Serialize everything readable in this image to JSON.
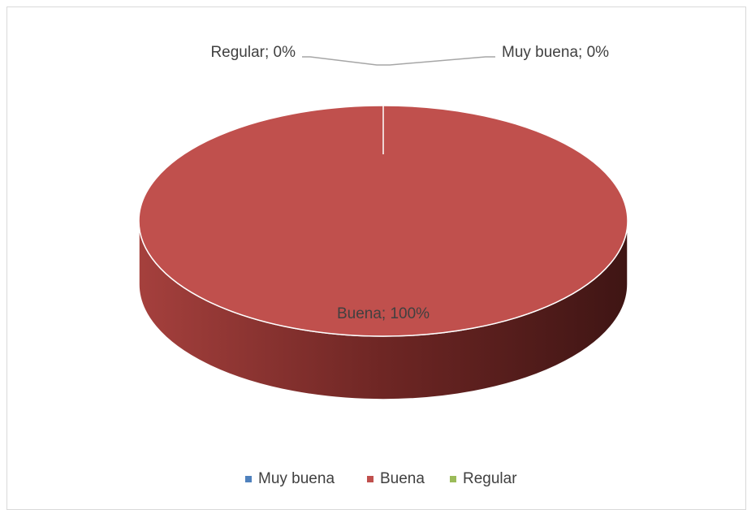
{
  "chart_data": {
    "type": "pie",
    "style": "3d",
    "categories": [
      "Muy buena",
      "Buena",
      "Regular"
    ],
    "values": [
      0,
      100,
      0
    ],
    "colors": [
      "#4f81bd",
      "#c0504d",
      "#9bbb59"
    ],
    "data_labels": [
      "Muy buena; 0%",
      "Buena; 100%",
      "Regular; 0%"
    ],
    "legend": {
      "position": "bottom",
      "entries": [
        "Muy buena",
        "Buena",
        "Regular"
      ]
    }
  }
}
